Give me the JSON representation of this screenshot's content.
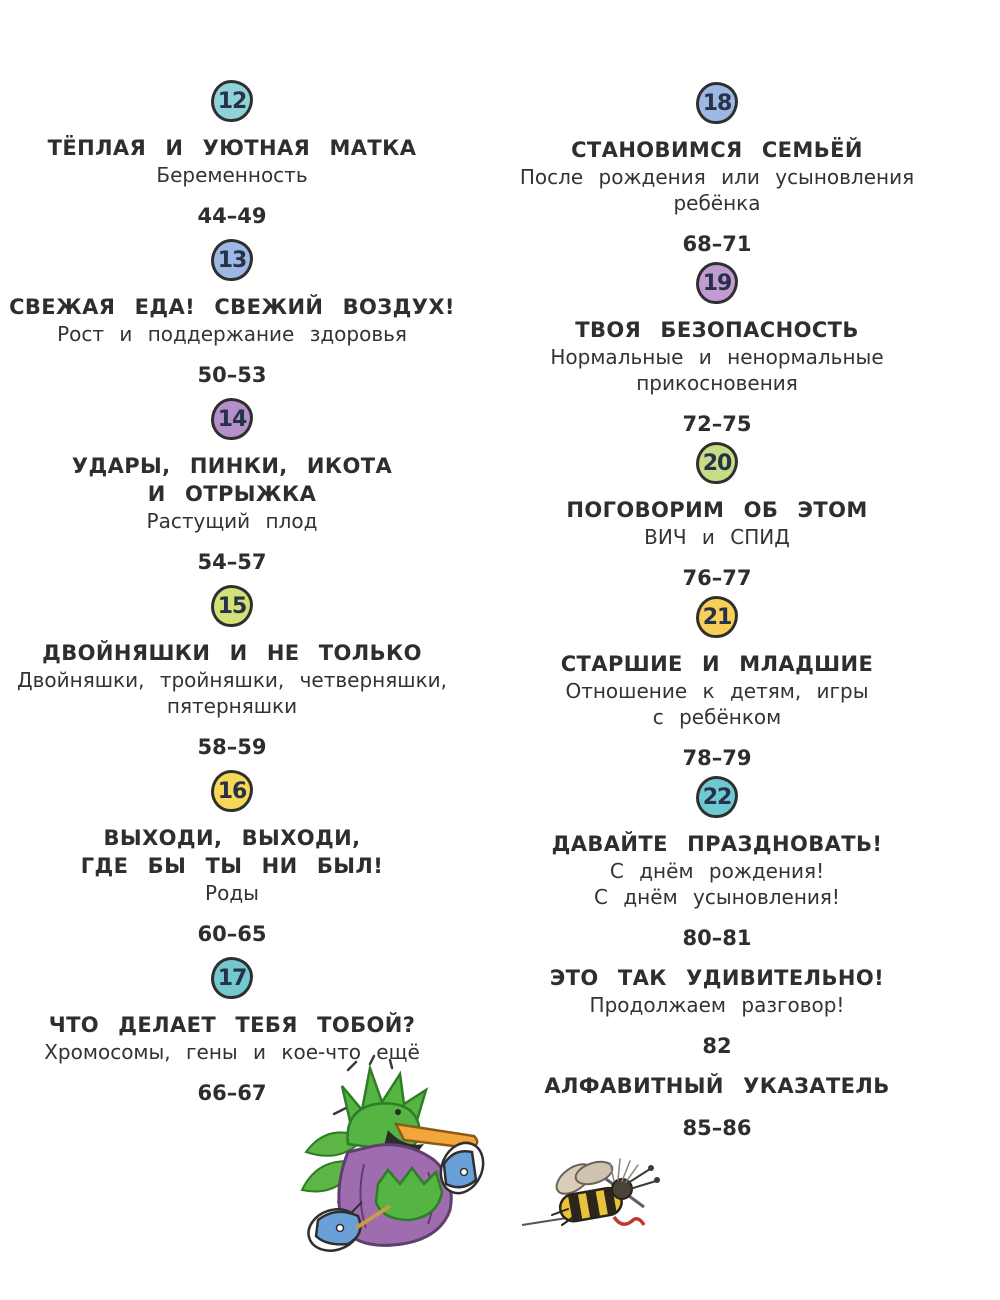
{
  "page": {
    "kind": "book-table-of-contents",
    "language": "ru",
    "background": "#ffffff",
    "text_color": "#2e2e2e",
    "number_color": "#263247"
  },
  "toc": {
    "left": [
      {
        "number": "12",
        "circle_color": "#8fd3d8",
        "title_lines": [
          "ТЁПЛАЯ  И  УЮТНАЯ  МАТКА"
        ],
        "subtitle_lines": [
          "Беременность"
        ],
        "pages": "44–49"
      },
      {
        "number": "13",
        "circle_color": "#9db9e3",
        "title_lines": [
          "СВЕЖАЯ  ЕДА!  СВЕЖИЙ  ВОЗДУХ!"
        ],
        "subtitle_lines": [
          "Рост  и  поддержание  здоровья"
        ],
        "pages": "50–53"
      },
      {
        "number": "14",
        "circle_color": "#b58fca",
        "title_lines": [
          "УДАРЫ,  ПИНКИ,  ИКОТА",
          "И  ОТРЫЖКА"
        ],
        "subtitle_lines": [
          "Растущий  плод"
        ],
        "pages": "54–57"
      },
      {
        "number": "15",
        "circle_color": "#d3e177",
        "title_lines": [
          "ДВОЙНЯШКИ  И  НЕ  ТОЛЬКО"
        ],
        "subtitle_lines": [
          "Двойняшки,  тройняшки,  четверняшки,",
          "пятерняшки"
        ],
        "pages": "58–59"
      },
      {
        "number": "16",
        "circle_color": "#f7d957",
        "title_lines": [
          "ВЫХОДИ,  ВЫХОДИ,",
          "ГДЕ  БЫ  ТЫ  НИ  БЫЛ!"
        ],
        "subtitle_lines": [
          "Роды"
        ],
        "pages": "60–65"
      },
      {
        "number": "17",
        "circle_color": "#74c9cf",
        "title_lines": [
          "ЧТО  ДЕЛАЕТ  ТЕБЯ  ТОБОЙ?"
        ],
        "subtitle_lines": [
          "Хромосомы,  гены  и  кое-что  ещё"
        ],
        "pages": "66–67"
      }
    ],
    "right": [
      {
        "number": "18",
        "circle_color": "#9db9e3",
        "title_lines": [
          "СТАНОВИМСЯ  СЕМЬЁЙ"
        ],
        "subtitle_lines": [
          "После  рождения  или  усыновления",
          "ребёнка"
        ],
        "pages": "68–71"
      },
      {
        "number": "19",
        "circle_color": "#c29bd3",
        "title_lines": [
          "ТВОЯ  БЕЗОПАСНОСТЬ"
        ],
        "subtitle_lines": [
          "Нормальные  и  ненормальные",
          "прикосновения"
        ],
        "pages": "72–75"
      },
      {
        "number": "20",
        "circle_color": "#c6dc85",
        "title_lines": [
          "ПОГОВОРИМ  ОБ  ЭТОМ"
        ],
        "subtitle_lines": [
          "ВИЧ  и  СПИД"
        ],
        "pages": "76–77"
      },
      {
        "number": "21",
        "circle_color": "#f7cf57",
        "title_lines": [
          "СТАРШИЕ  И  МЛАДШИЕ"
        ],
        "subtitle_lines": [
          "Отношение  к  детям,  игры",
          "с  ребёнком"
        ],
        "pages": "78–79"
      },
      {
        "number": "22",
        "circle_color": "#6fc9d3",
        "title_lines": [
          "ДАВАЙТЕ  ПРАЗДНОВАТЬ!"
        ],
        "subtitle_lines": [
          "С  днём  рождения!",
          "С  днём  усыновления!"
        ],
        "pages": "80–81"
      },
      {
        "title_lines": [
          "ЭТО  ТАК  УДИВИТЕЛЬНО!"
        ],
        "subtitle_lines": [
          "Продолжаем  разговор!"
        ],
        "pages": "82"
      },
      {
        "title_lines": [
          "АЛФАВИТНЫЙ  УКАЗАТЕЛЬ"
        ],
        "subtitle_lines": [],
        "pages": "85–86"
      }
    ]
  },
  "illustrations": {
    "duck": "green-duck-character-laughing-in-purple-robe-and-blue-sneakers",
    "bee": "bee-character-lying-on-back"
  }
}
